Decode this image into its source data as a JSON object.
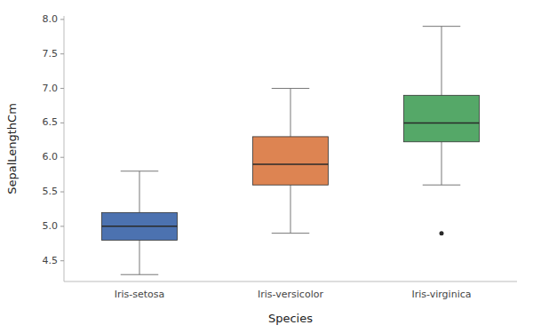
{
  "chart_data": {
    "type": "box",
    "xlabel": "Species",
    "ylabel": "SepalLengthCm",
    "categories": [
      "Iris-setosa",
      "Iris-versicolor",
      "Iris-virginica"
    ],
    "values": [
      {
        "whislo": 4.3,
        "q1": 4.8,
        "med": 5.0,
        "q3": 5.2,
        "whishi": 5.8,
        "fliers": []
      },
      {
        "whislo": 4.9,
        "q1": 5.6,
        "med": 5.9,
        "q3": 6.3,
        "whishi": 7.0,
        "fliers": []
      },
      {
        "whislo": 5.6,
        "q1": 6.225,
        "med": 6.5,
        "q3": 6.9,
        "whishi": 7.9,
        "fliers": [
          4.9
        ]
      }
    ],
    "colors": [
      "#4c72b0",
      "#dd8452",
      "#55a868"
    ],
    "ylim": [
      4.2,
      8.05
    ],
    "yticks": [
      4.5,
      {
        "value": 5.0,
        "label": "5.0"
      },
      5.5,
      {
        "value": 6.0,
        "label": "6.0"
      },
      6.5,
      {
        "value": 7.0,
        "label": "7.0"
      },
      7.5,
      {
        "value": 8.0,
        "label": "8.0"
      }
    ],
    "grid": false
  }
}
